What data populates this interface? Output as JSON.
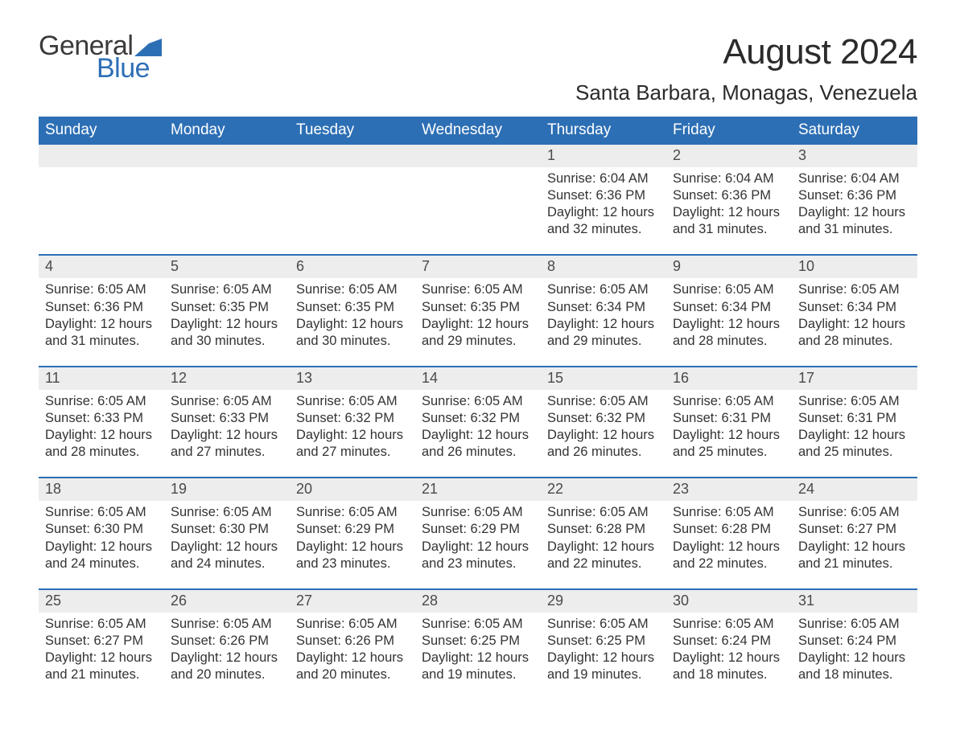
{
  "logo": {
    "text_general": "General",
    "text_blue": "Blue",
    "wedge_color": "#2d6fb5",
    "text_color_dark": "#3a3a3a"
  },
  "title": "August 2024",
  "location": "Santa Barbara, Monagas, Venezuela",
  "colors": {
    "header_bg": "#2d6fb5",
    "header_text": "#ffffff",
    "daynum_bg": "#ededed",
    "daynum_text": "#4a4a4a",
    "body_text": "#333333",
    "page_bg": "#ffffff",
    "week_divider": "#2d6fb5"
  },
  "typography": {
    "title_fontsize": 44,
    "location_fontsize": 26,
    "weekday_fontsize": 19,
    "daynum_fontsize": 18,
    "cell_fontsize": 16.5,
    "font_family": "Arial"
  },
  "weekdays": [
    "Sunday",
    "Monday",
    "Tuesday",
    "Wednesday",
    "Thursday",
    "Friday",
    "Saturday"
  ],
  "weeks": [
    [
      null,
      null,
      null,
      null,
      {
        "n": "1",
        "sr": "Sunrise: 6:04 AM",
        "ss": "Sunset: 6:36 PM",
        "d1": "Daylight: 12 hours",
        "d2": "and 32 minutes."
      },
      {
        "n": "2",
        "sr": "Sunrise: 6:04 AM",
        "ss": "Sunset: 6:36 PM",
        "d1": "Daylight: 12 hours",
        "d2": "and 31 minutes."
      },
      {
        "n": "3",
        "sr": "Sunrise: 6:04 AM",
        "ss": "Sunset: 6:36 PM",
        "d1": "Daylight: 12 hours",
        "d2": "and 31 minutes."
      }
    ],
    [
      {
        "n": "4",
        "sr": "Sunrise: 6:05 AM",
        "ss": "Sunset: 6:36 PM",
        "d1": "Daylight: 12 hours",
        "d2": "and 31 minutes."
      },
      {
        "n": "5",
        "sr": "Sunrise: 6:05 AM",
        "ss": "Sunset: 6:35 PM",
        "d1": "Daylight: 12 hours",
        "d2": "and 30 minutes."
      },
      {
        "n": "6",
        "sr": "Sunrise: 6:05 AM",
        "ss": "Sunset: 6:35 PM",
        "d1": "Daylight: 12 hours",
        "d2": "and 30 minutes."
      },
      {
        "n": "7",
        "sr": "Sunrise: 6:05 AM",
        "ss": "Sunset: 6:35 PM",
        "d1": "Daylight: 12 hours",
        "d2": "and 29 minutes."
      },
      {
        "n": "8",
        "sr": "Sunrise: 6:05 AM",
        "ss": "Sunset: 6:34 PM",
        "d1": "Daylight: 12 hours",
        "d2": "and 29 minutes."
      },
      {
        "n": "9",
        "sr": "Sunrise: 6:05 AM",
        "ss": "Sunset: 6:34 PM",
        "d1": "Daylight: 12 hours",
        "d2": "and 28 minutes."
      },
      {
        "n": "10",
        "sr": "Sunrise: 6:05 AM",
        "ss": "Sunset: 6:34 PM",
        "d1": "Daylight: 12 hours",
        "d2": "and 28 minutes."
      }
    ],
    [
      {
        "n": "11",
        "sr": "Sunrise: 6:05 AM",
        "ss": "Sunset: 6:33 PM",
        "d1": "Daylight: 12 hours",
        "d2": "and 28 minutes."
      },
      {
        "n": "12",
        "sr": "Sunrise: 6:05 AM",
        "ss": "Sunset: 6:33 PM",
        "d1": "Daylight: 12 hours",
        "d2": "and 27 minutes."
      },
      {
        "n": "13",
        "sr": "Sunrise: 6:05 AM",
        "ss": "Sunset: 6:32 PM",
        "d1": "Daylight: 12 hours",
        "d2": "and 27 minutes."
      },
      {
        "n": "14",
        "sr": "Sunrise: 6:05 AM",
        "ss": "Sunset: 6:32 PM",
        "d1": "Daylight: 12 hours",
        "d2": "and 26 minutes."
      },
      {
        "n": "15",
        "sr": "Sunrise: 6:05 AM",
        "ss": "Sunset: 6:32 PM",
        "d1": "Daylight: 12 hours",
        "d2": "and 26 minutes."
      },
      {
        "n": "16",
        "sr": "Sunrise: 6:05 AM",
        "ss": "Sunset: 6:31 PM",
        "d1": "Daylight: 12 hours",
        "d2": "and 25 minutes."
      },
      {
        "n": "17",
        "sr": "Sunrise: 6:05 AM",
        "ss": "Sunset: 6:31 PM",
        "d1": "Daylight: 12 hours",
        "d2": "and 25 minutes."
      }
    ],
    [
      {
        "n": "18",
        "sr": "Sunrise: 6:05 AM",
        "ss": "Sunset: 6:30 PM",
        "d1": "Daylight: 12 hours",
        "d2": "and 24 minutes."
      },
      {
        "n": "19",
        "sr": "Sunrise: 6:05 AM",
        "ss": "Sunset: 6:30 PM",
        "d1": "Daylight: 12 hours",
        "d2": "and 24 minutes."
      },
      {
        "n": "20",
        "sr": "Sunrise: 6:05 AM",
        "ss": "Sunset: 6:29 PM",
        "d1": "Daylight: 12 hours",
        "d2": "and 23 minutes."
      },
      {
        "n": "21",
        "sr": "Sunrise: 6:05 AM",
        "ss": "Sunset: 6:29 PM",
        "d1": "Daylight: 12 hours",
        "d2": "and 23 minutes."
      },
      {
        "n": "22",
        "sr": "Sunrise: 6:05 AM",
        "ss": "Sunset: 6:28 PM",
        "d1": "Daylight: 12 hours",
        "d2": "and 22 minutes."
      },
      {
        "n": "23",
        "sr": "Sunrise: 6:05 AM",
        "ss": "Sunset: 6:28 PM",
        "d1": "Daylight: 12 hours",
        "d2": "and 22 minutes."
      },
      {
        "n": "24",
        "sr": "Sunrise: 6:05 AM",
        "ss": "Sunset: 6:27 PM",
        "d1": "Daylight: 12 hours",
        "d2": "and 21 minutes."
      }
    ],
    [
      {
        "n": "25",
        "sr": "Sunrise: 6:05 AM",
        "ss": "Sunset: 6:27 PM",
        "d1": "Daylight: 12 hours",
        "d2": "and 21 minutes."
      },
      {
        "n": "26",
        "sr": "Sunrise: 6:05 AM",
        "ss": "Sunset: 6:26 PM",
        "d1": "Daylight: 12 hours",
        "d2": "and 20 minutes."
      },
      {
        "n": "27",
        "sr": "Sunrise: 6:05 AM",
        "ss": "Sunset: 6:26 PM",
        "d1": "Daylight: 12 hours",
        "d2": "and 20 minutes."
      },
      {
        "n": "28",
        "sr": "Sunrise: 6:05 AM",
        "ss": "Sunset: 6:25 PM",
        "d1": "Daylight: 12 hours",
        "d2": "and 19 minutes."
      },
      {
        "n": "29",
        "sr": "Sunrise: 6:05 AM",
        "ss": "Sunset: 6:25 PM",
        "d1": "Daylight: 12 hours",
        "d2": "and 19 minutes."
      },
      {
        "n": "30",
        "sr": "Sunrise: 6:05 AM",
        "ss": "Sunset: 6:24 PM",
        "d1": "Daylight: 12 hours",
        "d2": "and 18 minutes."
      },
      {
        "n": "31",
        "sr": "Sunrise: 6:05 AM",
        "ss": "Sunset: 6:24 PM",
        "d1": "Daylight: 12 hours",
        "d2": "and 18 minutes."
      }
    ]
  ]
}
